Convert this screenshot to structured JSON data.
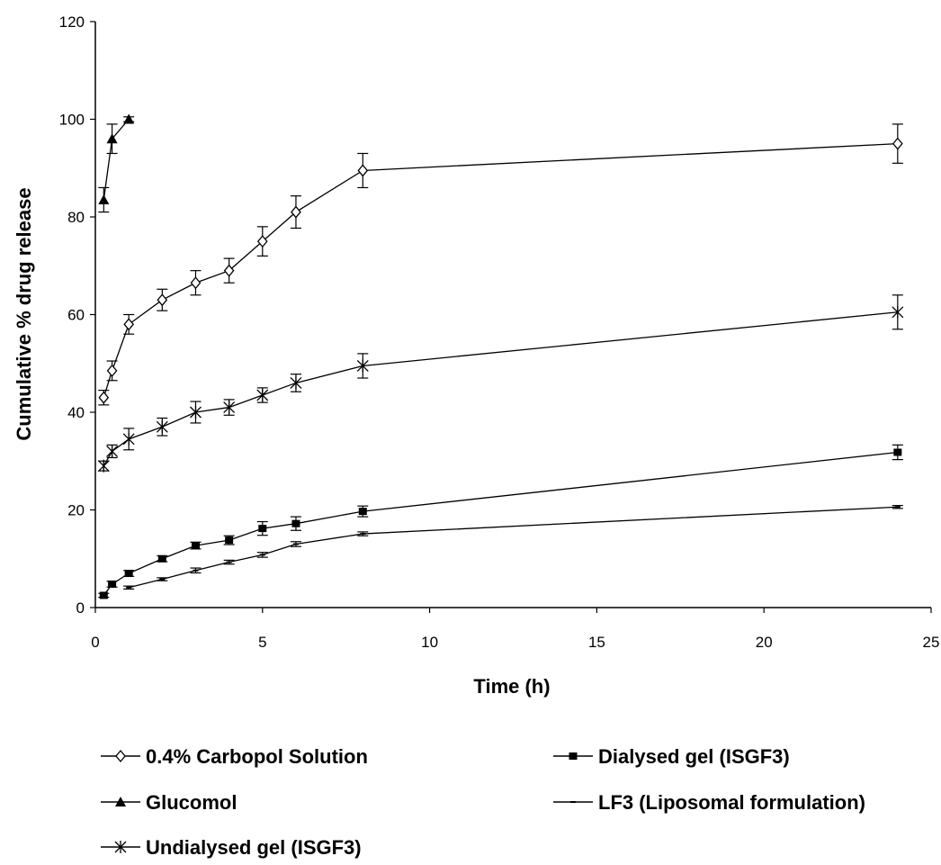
{
  "chart_data": {
    "type": "line",
    "title": "",
    "xlabel": "Time (h)",
    "ylabel": "Cumulative % drug release",
    "xlim": [
      0,
      25
    ],
    "ylim": [
      0,
      120
    ],
    "xticks": [
      "0",
      "5",
      "10",
      "15",
      "20",
      "25"
    ],
    "yticks": [
      "0",
      "20",
      "40",
      "60",
      "80",
      "100",
      "120"
    ],
    "grid": false,
    "legend_position": "bottom",
    "series": [
      {
        "name": "0.4% Carbopol Solution",
        "marker": "open-diamond",
        "color": "#000000",
        "x": [
          0.25,
          0.5,
          1,
          2,
          3,
          4,
          5,
          6,
          8,
          24
        ],
        "y": [
          43,
          48.5,
          58,
          63,
          66.5,
          69,
          75,
          81,
          89.5,
          95
        ],
        "error": [
          1.5,
          2,
          2,
          2.2,
          2.5,
          2.5,
          3,
          3.3,
          3.5,
          4
        ]
      },
      {
        "name": "Glucomol",
        "marker": "filled-triangle",
        "color": "#000000",
        "x": [
          0.25,
          0.5,
          1
        ],
        "y": [
          83.5,
          96,
          100
        ],
        "error": [
          2.5,
          3,
          0.5
        ]
      },
      {
        "name": "Undialysed gel (ISGF3)",
        "marker": "asterisk",
        "color": "#000000",
        "x": [
          0.25,
          0.5,
          1,
          2,
          3,
          4,
          5,
          6,
          8,
          24
        ],
        "y": [
          29,
          32,
          34.5,
          37,
          40,
          41,
          43.5,
          46,
          49.5,
          60.5
        ],
        "error": [
          1,
          1.3,
          2.2,
          1.8,
          2.2,
          1.6,
          1.5,
          1.8,
          2.5,
          3.5
        ]
      },
      {
        "name": "Dialysed gel (ISGF3)",
        "marker": "filled-square",
        "color": "#000000",
        "x": [
          0.25,
          0.5,
          1,
          2,
          3,
          4,
          5,
          6,
          8,
          24
        ],
        "y": [
          2.5,
          4.8,
          7,
          10,
          12.7,
          13.8,
          16.2,
          17.2,
          19.7,
          31.8
        ],
        "error": [
          0.4,
          0.6,
          0.6,
          0.6,
          0.7,
          0.9,
          1.4,
          1.4,
          1.1,
          1.5
        ]
      },
      {
        "name": "LF3 (Liposomal formulation)",
        "marker": "dash",
        "color": "#000000",
        "x": [
          1,
          2,
          3,
          4,
          5,
          6,
          8,
          24
        ],
        "y": [
          4.1,
          5.8,
          7.6,
          9.3,
          10.8,
          13,
          15.1,
          20.6
        ],
        "error": [
          0.3,
          0.3,
          0.5,
          0.4,
          0.5,
          0.5,
          0.4,
          0.3
        ]
      }
    ]
  }
}
